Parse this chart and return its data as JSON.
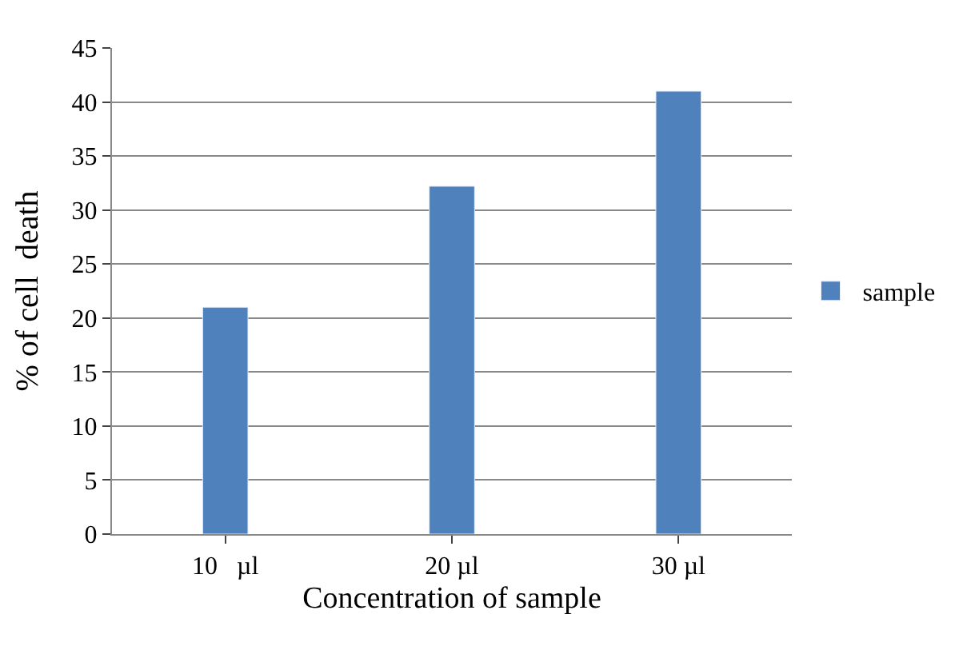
{
  "chart_data": {
    "type": "bar",
    "xlabel": "Concentration of sample",
    "ylabel": "% of cell  death",
    "categories": [
      "10   µl",
      "20 µl",
      "30 µl"
    ],
    "series": [
      {
        "name": "sample",
        "color": "#4f81bd",
        "values": [
          21,
          32.2,
          41
        ]
      }
    ],
    "ylim": [
      0,
      45
    ],
    "yticks": [
      0,
      5,
      10,
      15,
      20,
      25,
      30,
      35,
      40,
      45
    ],
    "grid": "y",
    "legend": "right"
  }
}
